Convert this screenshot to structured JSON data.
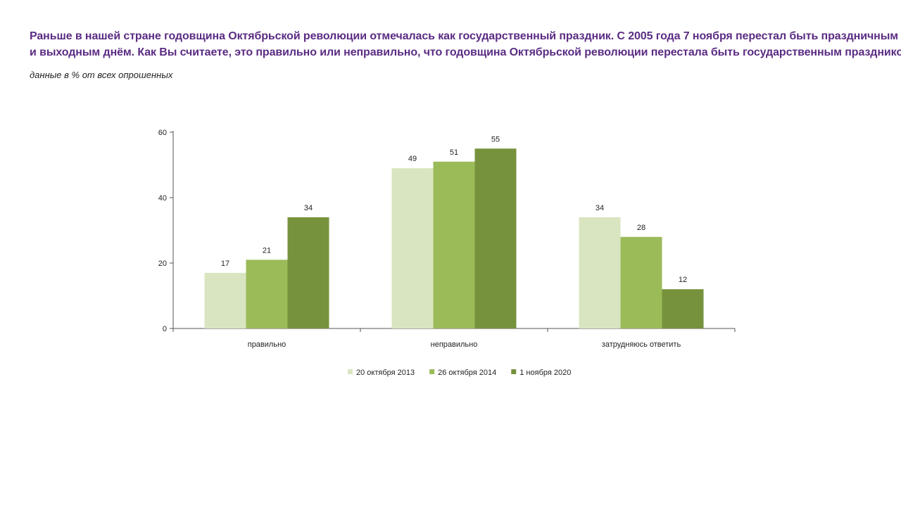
{
  "header": {
    "question_line1": "Раньше в нашей стране годовщина Октябрьской революции отмечалась как государственный праздник. С 2005 года 7 ноября перестал быть праздничным",
    "question_line2": "и выходным днём. Как Вы считаете, это правильно или неправильно, что годовщина Октябрьской революции перестала быть государственным праздником?",
    "subtitle": "данные в % от всех опрошенных"
  },
  "chart_data": {
    "type": "bar",
    "categories": [
      "правильно",
      "неправильно",
      "затрудняюсь ответить"
    ],
    "series": [
      {
        "name": "20 октября 2013",
        "color": "#d9e5c0",
        "values": [
          17,
          49,
          34
        ]
      },
      {
        "name": "26 октября 2014",
        "color": "#9bbb59",
        "values": [
          21,
          51,
          28
        ]
      },
      {
        "name": "1 ноября 2020",
        "color": "#76923c",
        "values": [
          34,
          55,
          12
        ]
      }
    ],
    "ylim": [
      0,
      60
    ],
    "yticks": [
      0,
      20,
      40,
      60
    ],
    "grid": false,
    "data_labels": true,
    "legend_position": "bottom",
    "xlabel": "",
    "ylabel": ""
  }
}
